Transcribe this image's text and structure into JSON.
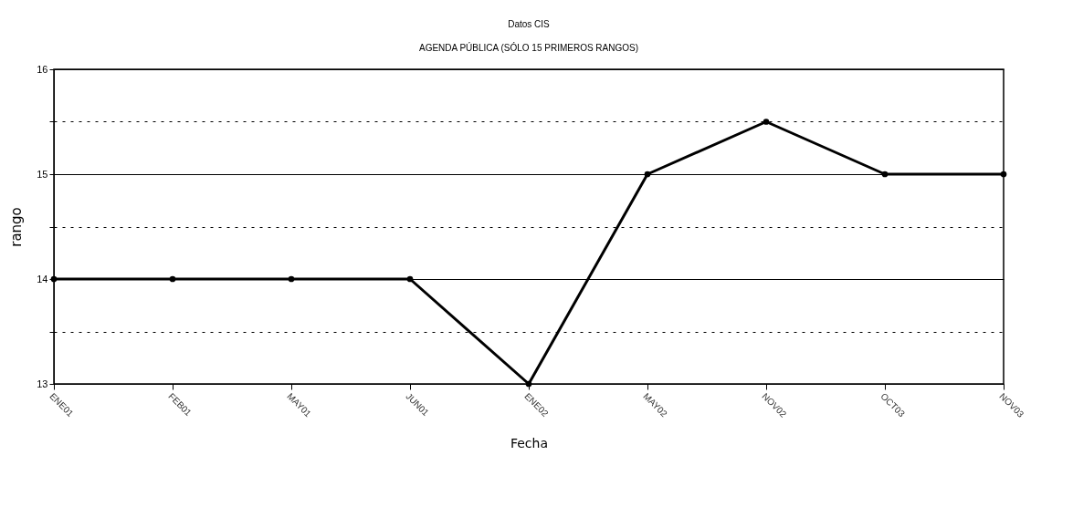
{
  "chart_data": {
    "type": "line",
    "title": "Datos CIS",
    "subtitle": "AGENDA PÚBLICA (SÓLO 15 PRIMEROS RANGOS)",
    "xlabel": "Fecha",
    "ylabel": "rango",
    "categories": [
      "ENE01",
      "FEB01",
      "MAY01",
      "JUN01",
      "ENE02",
      "MAY02",
      "NOV02",
      "OCT03",
      "NOV03"
    ],
    "series": [
      {
        "color": "#000000",
        "values": [
          14,
          14,
          14,
          14,
          13,
          15,
          15.5,
          15,
          15
        ]
      }
    ],
    "ylim": [
      13,
      16
    ],
    "yticks": [
      13,
      {
        "value": 13.5,
        "label": null
      },
      14,
      {
        "value": 14.5,
        "label": null
      },
      15,
      {
        "value": 15.5,
        "label": null
      },
      16
    ],
    "grid": "y",
    "marker": "circle",
    "line_style": "solid",
    "legend": false
  }
}
